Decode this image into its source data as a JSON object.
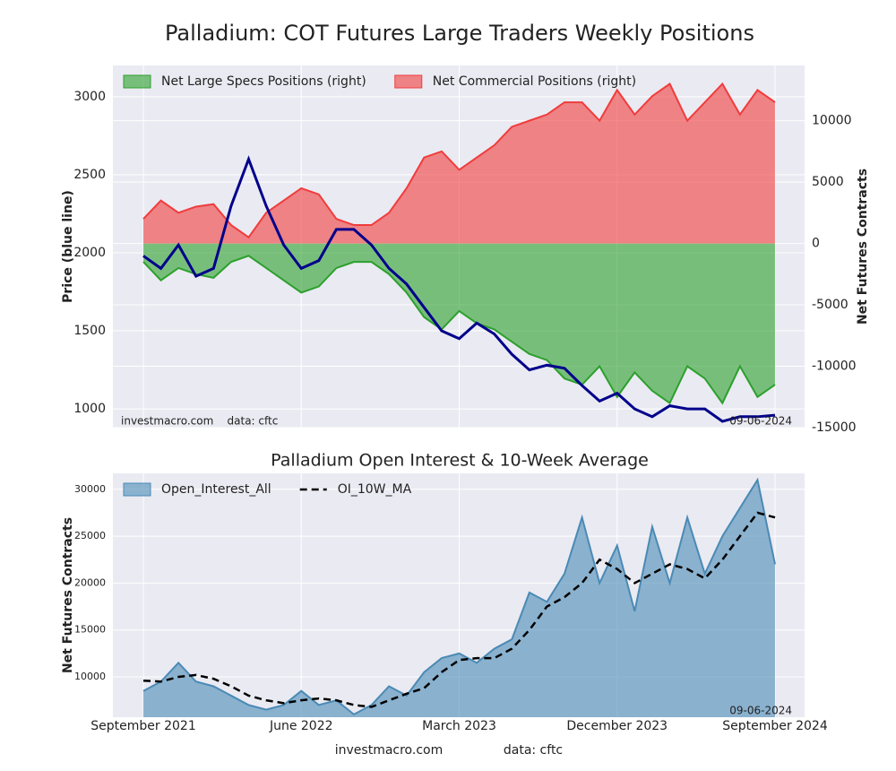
{
  "chart_data": [
    {
      "type": "area",
      "title": "Palladium: COT Futures Large Traders Weekly Positions",
      "ylabel": "Price (blue line)",
      "y2label": "Net Futures Contracts",
      "ylim": [
        880,
        3200
      ],
      "yticks": [
        1000,
        1500,
        2000,
        2500,
        3000
      ],
      "y2lim": [
        -15000,
        14500
      ],
      "y2ticks": [
        -15000,
        -10000,
        -5000,
        0,
        5000,
        10000
      ],
      "grid": true,
      "legend": "upper left",
      "annotations": [
        "investmacro.com    data: cftc",
        "09-06-2024"
      ],
      "series": [
        {
          "type": "line",
          "color": "#00008b",
          "values": [
            1980,
            1900,
            2050,
            1850,
            1900,
            2300,
            2600,
            2300,
            2050,
            1900,
            1950,
            2150,
            2150,
            2050,
            1900,
            1800,
            1650,
            1500,
            1450,
            1550,
            1480,
            1350,
            1250,
            1280,
            1260,
            1150,
            1050,
            1100,
            1000,
            950,
            1020,
            1000,
            1000,
            920,
            950,
            950,
            960
          ]
        },
        {
          "type": "area",
          "name": "Net Large Specs Positions (right)",
          "color": "#2ca02c",
          "axis": "y2",
          "values": [
            -1500,
            -3000,
            -2000,
            -2500,
            -2800,
            -1500,
            -1000,
            -2000,
            -3000,
            -4000,
            -3500,
            -2000,
            -1500,
            -1500,
            -2500,
            -4000,
            -6000,
            -7000,
            -5500,
            -6500,
            -7000,
            -8000,
            -9000,
            -9500,
            -11000,
            -11500,
            -10000,
            -12500,
            -10500,
            -12000,
            -13000,
            -10000,
            -11000,
            -13000,
            -10000,
            -12500,
            -11500
          ]
        },
        {
          "type": "area",
          "name": "Net Commercial Positions (right)",
          "color": "#f03c3c",
          "axis": "y2",
          "values": [
            2000,
            3500,
            2500,
            3000,
            3200,
            1500,
            500,
            2500,
            3500,
            4500,
            4000,
            2000,
            1500,
            1500,
            2500,
            4500,
            7000,
            7500,
            6000,
            7000,
            8000,
            9500,
            10000,
            10500,
            11500,
            11500,
            10000,
            12500,
            10500,
            12000,
            13000,
            10000,
            11500,
            13000,
            10500,
            12500,
            11500
          ]
        }
      ]
    },
    {
      "type": "area",
      "title": "Palladium Open Interest & 10-Week Average",
      "ylabel": "Net Futures Contracts",
      "ylim": [
        5700,
        31700
      ],
      "yticks": [
        10000,
        15000,
        20000,
        25000,
        30000
      ],
      "grid": true,
      "legend": "upper left",
      "annotations": [
        "09-06-2024"
      ],
      "categories": [
        "September 2021",
        null,
        null,
        null,
        null,
        null,
        null,
        null,
        null,
        "June 2022",
        null,
        null,
        null,
        null,
        null,
        null,
        null,
        null,
        "March 2023",
        null,
        null,
        null,
        null,
        null,
        null,
        null,
        null,
        "December 2023",
        null,
        null,
        null,
        null,
        null,
        null,
        null,
        null,
        "September 2024"
      ],
      "series": [
        {
          "type": "area",
          "name": "Open_Interest_All",
          "color": "#4a8ab5",
          "values": [
            8500,
            9500,
            11500,
            9500,
            9000,
            8000,
            7000,
            6500,
            7000,
            8500,
            7000,
            7500,
            6000,
            7000,
            9000,
            8000,
            10500,
            12000,
            12500,
            11500,
            13000,
            14000,
            19000,
            18000,
            21000,
            27000,
            20000,
            24000,
            17000,
            26000,
            20000,
            27000,
            21000,
            25000,
            28000,
            31000,
            22000
          ]
        },
        {
          "type": "line",
          "name": "OI_10W_MA",
          "color": "#000000",
          "dash": true,
          "values": [
            9600,
            9500,
            10000,
            10200,
            9800,
            9000,
            8000,
            7500,
            7200,
            7500,
            7700,
            7500,
            7000,
            6800,
            7500,
            8200,
            8800,
            10500,
            11800,
            12000,
            12000,
            13000,
            15000,
            17500,
            18500,
            20000,
            22500,
            21500,
            20000,
            21000,
            22000,
            21500,
            20500,
            22500,
            25000,
            27500,
            27000
          ]
        }
      ]
    }
  ],
  "footer": {
    "site": "investmacro.com",
    "source": "data: cftc"
  }
}
